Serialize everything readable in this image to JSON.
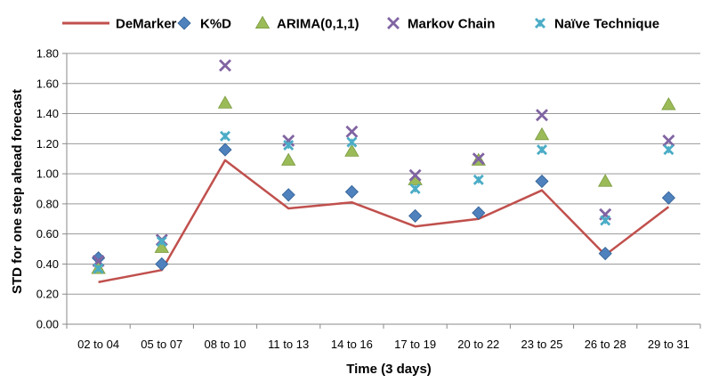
{
  "chart_data": {
    "type": "line+scatter",
    "xlabel": "Time (3 days)",
    "ylabel": "STD for one step ahead forecast",
    "ylim": [
      0,
      1.8
    ],
    "ytick_step": 0.2,
    "yticks": [
      "0.00",
      "0.20",
      "0.40",
      "0.60",
      "0.80",
      "1.00",
      "1.20",
      "1.40",
      "1.60",
      "1.80"
    ],
    "grid": true,
    "legend_position": "top",
    "categories": [
      "02 to 04",
      "05 to 07",
      "08 to 10",
      "11 to 13",
      "14 to 16",
      "17 to 19",
      "20 to 22",
      "23 to 25",
      "26 to 28",
      "29 to 31"
    ],
    "series": [
      {
        "name": "DeMarker",
        "kind": "line",
        "marker": "none",
        "color": "#C0504D",
        "values": [
          0.28,
          0.36,
          1.09,
          0.77,
          0.81,
          0.65,
          0.7,
          0.89,
          0.46,
          0.78
        ]
      },
      {
        "name": "K%D",
        "kind": "scatter",
        "marker": "diamond",
        "color": "#4F81BD",
        "values": [
          0.44,
          0.4,
          1.16,
          0.86,
          0.88,
          0.72,
          0.74,
          0.95,
          0.47,
          0.84
        ]
      },
      {
        "name": "ARIMA(0,1,1)",
        "kind": "scatter",
        "marker": "triangle",
        "color": "#9BBB59",
        "values": [
          0.37,
          0.51,
          1.47,
          1.09,
          1.15,
          0.96,
          1.09,
          1.26,
          0.95,
          1.46
        ]
      },
      {
        "name": "Markov Chain",
        "kind": "scatter",
        "marker": "x",
        "color": "#8064A2",
        "values": [
          0.42,
          0.56,
          1.72,
          1.22,
          1.28,
          0.99,
          1.1,
          1.39,
          0.73,
          1.22
        ]
      },
      {
        "name": "Naïve Technique",
        "kind": "scatter",
        "marker": "asterisk",
        "color": "#4BACC6",
        "values": [
          0.37,
          0.55,
          1.25,
          1.19,
          1.21,
          0.9,
          0.96,
          1.16,
          0.69,
          1.16
        ]
      }
    ]
  }
}
